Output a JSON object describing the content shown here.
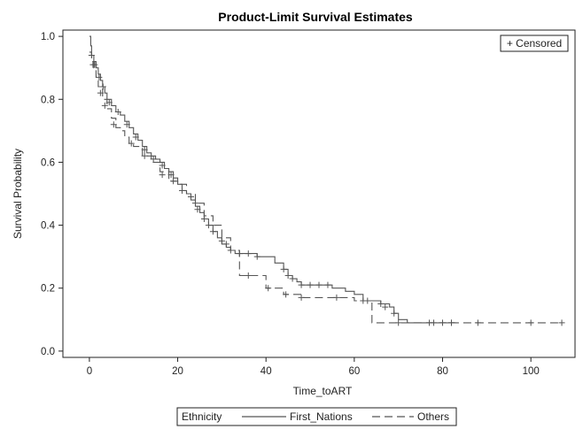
{
  "chart_data": {
    "type": "line",
    "subtype": "step-survival",
    "title": "Product-Limit Survival Estimates",
    "xlabel": "Time_toART",
    "ylabel": "Survival Probability",
    "xlim": [
      -6,
      110
    ],
    "ylim": [
      -0.02,
      1.02
    ],
    "xticks": [
      0,
      20,
      40,
      60,
      80,
      100
    ],
    "yticks": [
      0.0,
      0.2,
      0.4,
      0.6,
      0.8,
      1.0
    ],
    "ytick_labels": [
      "0.0",
      "0.2",
      "0.4",
      "0.6",
      "0.8",
      "1.0"
    ],
    "censor_legend": "+ Censored",
    "legend_title": "Ethnicity",
    "series": [
      {
        "name": "First_Nations",
        "style": "solid",
        "color": "#555555",
        "x": [
          0,
          0.3,
          0.5,
          1,
          1.5,
          2,
          2.5,
          3,
          3.5,
          4,
          5,
          6,
          7,
          8,
          9,
          10,
          11,
          12,
          13,
          14,
          15,
          16,
          17,
          18,
          19,
          20,
          21,
          22,
          23,
          24,
          25,
          26,
          27,
          28,
          29,
          30,
          31,
          32,
          33,
          35,
          38,
          40,
          42,
          44,
          45,
          46,
          47,
          48,
          52,
          55,
          58,
          60,
          62,
          64,
          66,
          68,
          69,
          70,
          72,
          75,
          80,
          83
        ],
        "y": [
          1.0,
          0.97,
          0.94,
          0.92,
          0.9,
          0.88,
          0.86,
          0.84,
          0.82,
          0.8,
          0.78,
          0.76,
          0.75,
          0.73,
          0.71,
          0.69,
          0.67,
          0.65,
          0.63,
          0.62,
          0.61,
          0.6,
          0.58,
          0.57,
          0.55,
          0.53,
          0.51,
          0.5,
          0.48,
          0.46,
          0.44,
          0.42,
          0.4,
          0.38,
          0.36,
          0.34,
          0.33,
          0.32,
          0.31,
          0.31,
          0.3,
          0.3,
          0.28,
          0.26,
          0.24,
          0.23,
          0.22,
          0.21,
          0.21,
          0.2,
          0.19,
          0.18,
          0.16,
          0.16,
          0.15,
          0.14,
          0.12,
          0.1,
          0.09,
          0.09,
          0.09,
          0.09
        ],
        "censored_x": [
          0.5,
          1.2,
          2.2,
          3.1,
          4.5,
          6.5,
          8.5,
          10.5,
          12.5,
          14.5,
          16.5,
          18.5,
          21,
          23,
          24.5,
          26,
          28,
          30,
          32,
          34,
          36,
          38,
          44,
          45,
          46,
          48,
          50,
          52,
          54,
          63,
          66,
          67,
          69,
          77,
          80,
          82
        ],
        "censored_y": [
          0.94,
          0.91,
          0.87,
          0.84,
          0.79,
          0.76,
          0.72,
          0.68,
          0.64,
          0.61,
          0.59,
          0.56,
          0.51,
          0.49,
          0.45,
          0.42,
          0.38,
          0.35,
          0.32,
          0.31,
          0.31,
          0.3,
          0.26,
          0.24,
          0.23,
          0.21,
          0.21,
          0.21,
          0.21,
          0.16,
          0.15,
          0.14,
          0.12,
          0.09,
          0.09,
          0.09
        ]
      },
      {
        "name": "Others",
        "style": "dashed",
        "color": "#555555",
        "x": [
          0,
          0.5,
          1,
          1.5,
          2,
          3,
          4,
          5,
          6,
          7,
          8,
          9,
          10,
          12,
          14,
          16,
          18,
          20,
          22,
          24,
          26,
          28,
          30,
          32,
          34,
          36,
          40,
          44,
          48,
          56,
          60,
          64,
          70,
          80,
          90,
          100,
          107
        ],
        "y": [
          0.95,
          0.92,
          0.9,
          0.87,
          0.84,
          0.8,
          0.77,
          0.74,
          0.71,
          0.7,
          0.68,
          0.66,
          0.65,
          0.62,
          0.6,
          0.57,
          0.54,
          0.53,
          0.5,
          0.47,
          0.43,
          0.4,
          0.36,
          0.32,
          0.24,
          0.24,
          0.2,
          0.18,
          0.17,
          0.17,
          0.16,
          0.09,
          0.09,
          0.09,
          0.09,
          0.09,
          0.09
        ],
        "censored_x": [
          0.8,
          2.5,
          3.5,
          5.5,
          9.5,
          12.5,
          16.5,
          19,
          24,
          27,
          31,
          36,
          40.5,
          44.5,
          48,
          56,
          62,
          70,
          78,
          82,
          88,
          100,
          107
        ],
        "censored_y": [
          0.91,
          0.82,
          0.78,
          0.72,
          0.66,
          0.62,
          0.56,
          0.54,
          0.47,
          0.4,
          0.34,
          0.24,
          0.2,
          0.18,
          0.17,
          0.17,
          0.16,
          0.09,
          0.09,
          0.09,
          0.09,
          0.09,
          0.09
        ]
      }
    ]
  }
}
